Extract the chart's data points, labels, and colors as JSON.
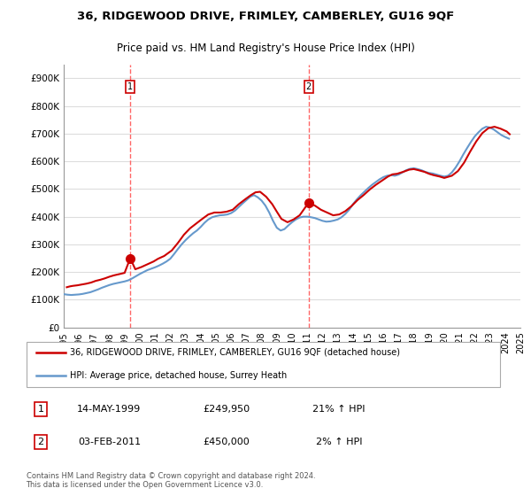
{
  "title": "36, RIDGEWOOD DRIVE, FRIMLEY, CAMBERLEY, GU16 9QF",
  "subtitle": "Price paid vs. HM Land Registry's House Price Index (HPI)",
  "ylabel_ticks": [
    "£0",
    "£100K",
    "£200K",
    "£300K",
    "£400K",
    "£500K",
    "£600K",
    "£700K",
    "£800K",
    "£900K"
  ],
  "ytick_values": [
    0,
    100000,
    200000,
    300000,
    400000,
    500000,
    600000,
    700000,
    800000,
    900000
  ],
  "ylim": [
    0,
    950000
  ],
  "legend_line1": "36, RIDGEWOOD DRIVE, FRIMLEY, CAMBERLEY, GU16 9QF (detached house)",
  "legend_line2": "HPI: Average price, detached house, Surrey Heath",
  "annotation1_label": "1",
  "annotation1_date": "14-MAY-1999",
  "annotation1_price": "£249,950",
  "annotation1_hpi": "21% ↑ HPI",
  "annotation2_label": "2",
  "annotation2_date": "03-FEB-2011",
  "annotation2_price": "£450,000",
  "annotation2_hpi": "2% ↑ HPI",
  "footer": "Contains HM Land Registry data © Crown copyright and database right 2024.\nThis data is licensed under the Open Government Licence v3.0.",
  "red_color": "#cc0000",
  "blue_color": "#6699cc",
  "vline_color": "#ff6666",
  "background_color": "#ffffff",
  "grid_color": "#dddddd",
  "hpi_data": {
    "years": [
      1995.0,
      1995.25,
      1995.5,
      1995.75,
      1996.0,
      1996.25,
      1996.5,
      1996.75,
      1997.0,
      1997.25,
      1997.5,
      1997.75,
      1998.0,
      1998.25,
      1998.5,
      1998.75,
      1999.0,
      1999.25,
      1999.5,
      1999.75,
      2000.0,
      2000.25,
      2000.5,
      2000.75,
      2001.0,
      2001.25,
      2001.5,
      2001.75,
      2002.0,
      2002.25,
      2002.5,
      2002.75,
      2003.0,
      2003.25,
      2003.5,
      2003.75,
      2004.0,
      2004.25,
      2004.5,
      2004.75,
      2005.0,
      2005.25,
      2005.5,
      2005.75,
      2006.0,
      2006.25,
      2006.5,
      2006.75,
      2007.0,
      2007.25,
      2007.5,
      2007.75,
      2008.0,
      2008.25,
      2008.5,
      2008.75,
      2009.0,
      2009.25,
      2009.5,
      2009.75,
      2010.0,
      2010.25,
      2010.5,
      2010.75,
      2011.0,
      2011.25,
      2011.5,
      2011.75,
      2012.0,
      2012.25,
      2012.5,
      2012.75,
      2013.0,
      2013.25,
      2013.5,
      2013.75,
      2014.0,
      2014.25,
      2014.5,
      2014.75,
      2015.0,
      2015.25,
      2015.5,
      2015.75,
      2016.0,
      2016.25,
      2016.5,
      2016.75,
      2017.0,
      2017.25,
      2017.5,
      2017.75,
      2018.0,
      2018.25,
      2018.5,
      2018.75,
      2019.0,
      2019.25,
      2019.5,
      2019.75,
      2020.0,
      2020.25,
      2020.5,
      2020.75,
      2021.0,
      2021.25,
      2021.5,
      2021.75,
      2022.0,
      2022.25,
      2022.5,
      2022.75,
      2023.0,
      2023.25,
      2023.5,
      2023.75,
      2024.0,
      2024.25
    ],
    "values": [
      120000,
      118000,
      117000,
      118000,
      119000,
      121000,
      124000,
      127000,
      132000,
      137000,
      143000,
      148000,
      153000,
      157000,
      160000,
      163000,
      166000,
      170000,
      177000,
      185000,
      193000,
      200000,
      207000,
      212000,
      217000,
      223000,
      230000,
      238000,
      248000,
      265000,
      283000,
      300000,
      315000,
      328000,
      340000,
      350000,
      363000,
      378000,
      390000,
      398000,
      402000,
      405000,
      406000,
      408000,
      413000,
      422000,
      435000,
      448000,
      460000,
      472000,
      478000,
      470000,
      458000,
      440000,
      415000,
      385000,
      360000,
      350000,
      355000,
      368000,
      380000,
      390000,
      397000,
      400000,
      400000,
      398000,
      395000,
      390000,
      385000,
      382000,
      383000,
      386000,
      390000,
      398000,
      410000,
      425000,
      445000,
      462000,
      477000,
      490000,
      503000,
      515000,
      525000,
      535000,
      543000,
      548000,
      550000,
      548000,
      552000,
      560000,
      568000,
      573000,
      575000,
      572000,
      568000,
      562000,
      558000,
      556000,
      552000,
      548000,
      545000,
      548000,
      560000,
      578000,
      600000,
      625000,
      648000,
      670000,
      690000,
      705000,
      718000,
      725000,
      722000,
      715000,
      705000,
      695000,
      688000,
      682000
    ]
  },
  "price_data": {
    "years": [
      1995.2,
      1995.4,
      1995.6,
      1995.9,
      1996.2,
      1996.5,
      1996.8,
      1997.1,
      1997.4,
      1997.7,
      1998.0,
      1998.3,
      1998.7,
      1999.0,
      1999.37,
      1999.7,
      2000.1,
      2000.5,
      2000.9,
      2001.2,
      2001.6,
      2002.1,
      2002.5,
      2002.9,
      2003.3,
      2003.7,
      2004.1,
      2004.5,
      2004.9,
      2005.3,
      2005.7,
      2006.1,
      2006.5,
      2006.9,
      2007.3,
      2007.6,
      2007.9,
      2008.3,
      2008.7,
      2009.0,
      2009.3,
      2009.7,
      2010.1,
      2010.5,
      2011.08,
      2011.5,
      2011.9,
      2012.3,
      2012.7,
      2013.1,
      2013.5,
      2013.9,
      2014.3,
      2014.7,
      2015.1,
      2015.5,
      2015.9,
      2016.3,
      2016.6,
      2016.9,
      2017.3,
      2017.7,
      2018.0,
      2018.3,
      2018.7,
      2019.0,
      2019.3,
      2019.7,
      2020.0,
      2020.5,
      2020.9,
      2021.3,
      2021.7,
      2022.1,
      2022.5,
      2022.9,
      2023.3,
      2023.7,
      2024.1,
      2024.3
    ],
    "values": [
      145000,
      148000,
      150000,
      152000,
      155000,
      158000,
      162000,
      168000,
      172000,
      177000,
      183000,
      188000,
      193000,
      197000,
      249950,
      210000,
      218000,
      228000,
      238000,
      248000,
      258000,
      278000,
      305000,
      335000,
      358000,
      375000,
      392000,
      408000,
      415000,
      415000,
      418000,
      425000,
      445000,
      462000,
      478000,
      488000,
      490000,
      472000,
      445000,
      418000,
      392000,
      380000,
      390000,
      405000,
      450000,
      440000,
      425000,
      415000,
      405000,
      408000,
      420000,
      438000,
      460000,
      478000,
      498000,
      515000,
      530000,
      545000,
      553000,
      555000,
      562000,
      570000,
      572000,
      568000,
      562000,
      555000,
      550000,
      545000,
      540000,
      548000,
      565000,
      595000,
      635000,
      672000,
      702000,
      720000,
      725000,
      718000,
      708000,
      698000
    ]
  },
  "sale1_year": 1999.37,
  "sale1_price": 249950,
  "sale2_year": 2011.09,
  "sale2_price": 450000,
  "vline1_year": 1999.37,
  "vline2_year": 2011.09,
  "xtick_years": [
    1995,
    1996,
    1997,
    1998,
    1999,
    2000,
    2001,
    2002,
    2003,
    2004,
    2005,
    2006,
    2007,
    2008,
    2009,
    2010,
    2011,
    2012,
    2013,
    2014,
    2015,
    2016,
    2017,
    2018,
    2019,
    2020,
    2021,
    2022,
    2023,
    2024,
    2025
  ]
}
